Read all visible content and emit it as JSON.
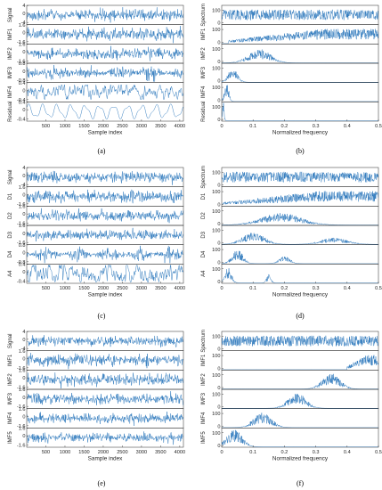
{
  "figure": {
    "series_color": "#1f6fb8",
    "panel_letters": [
      "(a)",
      "(b)",
      "(c)",
      "(d)",
      "(e)",
      "(f)"
    ]
  },
  "chart_data": [
    {
      "type": "line",
      "panel": "(a)",
      "xlabel": "Sample index",
      "xlim": [
        0,
        4096
      ],
      "xticks": [
        "500",
        "1000",
        "1500",
        "2000",
        "2500",
        "3000",
        "3500",
        "4000"
      ],
      "series": [
        {
          "name": "Signal",
          "ytick_labels": [
            "4",
            "0",
            "-4"
          ],
          "ylim": [
            -4,
            4
          ],
          "amplitude": 3,
          "character": "broadband"
        },
        {
          "name": "IMF1",
          "ytick_labels": [
            "1.6",
            "0",
            "-1.6"
          ],
          "ylim": [
            -1.6,
            1.6
          ],
          "amplitude": 1.4,
          "character": "broadband"
        },
        {
          "name": "IMF2",
          "ytick_labels": [
            "1.6",
            "0",
            "-1.6"
          ],
          "ylim": [
            -1.6,
            1.6
          ],
          "amplitude": 1.1,
          "character": "high-mid band"
        },
        {
          "name": "IMF3",
          "ytick_labels": [
            "0.8",
            "0",
            "-0.8"
          ],
          "ylim": [
            -0.8,
            0.8
          ],
          "amplitude": 0.6,
          "character": "mid band"
        },
        {
          "name": "IMF4",
          "ytick_labels": [
            "0.4",
            "0",
            "-0.4"
          ],
          "ylim": [
            -0.4,
            0.4
          ],
          "amplitude": 0.3,
          "character": "low band"
        },
        {
          "name": "Residual",
          "ytick_labels": [
            "0.4",
            "0",
            "-0.4"
          ],
          "ylim": [
            -0.4,
            0.4
          ],
          "amplitude": 0.35,
          "character": "slow oscillation"
        }
      ]
    },
    {
      "type": "line",
      "panel": "(b)",
      "xlabel": "Normalized frequency",
      "xlim": [
        0,
        0.5
      ],
      "xticks": [
        "0",
        "0.1",
        "0.2",
        "0.3",
        "0.4",
        "0.5"
      ],
      "series": [
        {
          "name": "Spectrum",
          "ytick_labels": [
            "100",
            "0"
          ],
          "ylim": [
            0,
            130
          ],
          "spectrum_shape": "flat",
          "level": 100
        },
        {
          "name": "IMF1",
          "ytick_labels": [
            "100",
            "0"
          ],
          "ylim": [
            0,
            130
          ],
          "spectrum_shape": "rising",
          "from": 0.02,
          "to": 0.5,
          "level": 100
        },
        {
          "name": "IMF2",
          "ytick_labels": [
            "100",
            "0"
          ],
          "ylim": [
            0,
            130
          ],
          "spectrum_shape": "hump",
          "center": 0.12,
          "width": 0.05,
          "level": 80
        },
        {
          "name": "IMF3",
          "ytick_labels": [
            "100",
            "0"
          ],
          "ylim": [
            0,
            130
          ],
          "spectrum_shape": "hump",
          "center": 0.035,
          "width": 0.02,
          "level": 90
        },
        {
          "name": "IMF4",
          "ytick_labels": [
            "100",
            "0"
          ],
          "ylim": [
            0,
            130
          ],
          "spectrum_shape": "hump",
          "center": 0.015,
          "width": 0.01,
          "level": 100
        },
        {
          "name": "Residual",
          "ytick_labels": [
            "100",
            "0"
          ],
          "ylim": [
            0,
            130
          ],
          "spectrum_shape": "hump",
          "center": 0.004,
          "width": 0.004,
          "level": 110
        }
      ]
    },
    {
      "type": "line",
      "panel": "(c)",
      "xlabel": "Sample index",
      "xlim": [
        0,
        4096
      ],
      "xticks": [
        "500",
        "1000",
        "1500",
        "2000",
        "2500",
        "3000",
        "3500",
        "4000"
      ],
      "series": [
        {
          "name": "Signal",
          "ytick_labels": [
            "4",
            "0",
            "-4"
          ],
          "ylim": [
            -4,
            4
          ],
          "amplitude": 3,
          "character": "broadband"
        },
        {
          "name": "D1",
          "ytick_labels": [
            "1.6",
            "0",
            "-1.6"
          ],
          "ylim": [
            -1.6,
            1.6
          ],
          "amplitude": 1.3,
          "character": "broadband"
        },
        {
          "name": "D2",
          "ytick_labels": [
            "1.6",
            "0",
            "-1.6"
          ],
          "ylim": [
            -1.6,
            1.6
          ],
          "amplitude": 1.2,
          "character": "broadband"
        },
        {
          "name": "D3",
          "ytick_labels": [
            "1.6",
            "0",
            "-1.6"
          ],
          "ylim": [
            -1.6,
            1.6
          ],
          "amplitude": 1.1,
          "character": "broadband"
        },
        {
          "name": "D4",
          "ytick_labels": [
            "0.8",
            "0",
            "-0.8"
          ],
          "ylim": [
            -0.8,
            0.8
          ],
          "amplitude": 0.6,
          "character": "mid band"
        },
        {
          "name": "A4",
          "ytick_labels": [
            "0.4",
            "0",
            "-0.4"
          ],
          "ylim": [
            -0.4,
            0.4
          ],
          "amplitude": 0.35,
          "character": "low band"
        }
      ]
    },
    {
      "type": "line",
      "panel": "(d)",
      "xlabel": "Normalized frequency",
      "xlim": [
        0,
        0.5
      ],
      "xticks": [
        "0",
        "0.1",
        "0.2",
        "0.3",
        "0.4",
        "0.5"
      ],
      "series": [
        {
          "name": "Spectrum",
          "ytick_labels": [
            "100",
            "0"
          ],
          "ylim": [
            0,
            130
          ],
          "spectrum_shape": "flat",
          "level": 100
        },
        {
          "name": "D1",
          "ytick_labels": [
            "100",
            "0"
          ],
          "ylim": [
            0,
            130
          ],
          "spectrum_shape": "rising",
          "from": 0.0,
          "to": 0.5,
          "level": 100
        },
        {
          "name": "D2",
          "ytick_labels": [
            "100",
            "0"
          ],
          "ylim": [
            0,
            130
          ],
          "spectrum_shape": "hump",
          "center": 0.19,
          "width": 0.09,
          "level": 70
        },
        {
          "name": "D3",
          "ytick_labels": [
            "100",
            "0"
          ],
          "ylim": [
            0,
            130
          ],
          "spectrum_shape": "double-hump",
          "center": 0.1,
          "width": 0.05,
          "center2": 0.36,
          "width2": 0.06,
          "level": 70
        },
        {
          "name": "D4",
          "ytick_labels": [
            "100",
            "0"
          ],
          "ylim": [
            0,
            130
          ],
          "spectrum_shape": "double-hump",
          "center": 0.05,
          "width": 0.025,
          "center2": 0.2,
          "width2": 0.025,
          "level": 80
        },
        {
          "name": "A4",
          "ytick_labels": [
            "100",
            "0"
          ],
          "ylim": [
            0,
            130
          ],
          "spectrum_shape": "double-hump",
          "center": 0.02,
          "width": 0.015,
          "center2": 0.15,
          "width2": 0.01,
          "level": 90
        }
      ]
    },
    {
      "type": "line",
      "panel": "(e)",
      "xlabel": "Sample index",
      "xlim": [
        0,
        4096
      ],
      "xticks": [
        "500",
        "1000",
        "1500",
        "2000",
        "2500",
        "3000",
        "3500",
        "4000"
      ],
      "series": [
        {
          "name": "Signal",
          "ytick_labels": [
            "4",
            "0",
            "-4"
          ],
          "ylim": [
            -4,
            4
          ],
          "amplitude": 3,
          "character": "broadband"
        },
        {
          "name": "IMF1",
          "ytick_labels": [
            "1.6",
            "0",
            "-1.6"
          ],
          "ylim": [
            -1.6,
            1.6
          ],
          "amplitude": 1.3,
          "character": "broadband"
        },
        {
          "name": "IMF2",
          "ytick_labels": [
            "1.6",
            "0",
            "-1.6"
          ],
          "ylim": [
            -1.6,
            1.6
          ],
          "amplitude": 1.3,
          "character": "broadband"
        },
        {
          "name": "IMF3",
          "ytick_labels": [
            "1.6",
            "0",
            "-1.6"
          ],
          "ylim": [
            -1.6,
            1.6
          ],
          "amplitude": 1.2,
          "character": "broadband"
        },
        {
          "name": "IMF4",
          "ytick_labels": [
            "1.6",
            "0",
            "-1.6"
          ],
          "ylim": [
            -1.6,
            1.6
          ],
          "amplitude": 1.1,
          "character": "broadband"
        },
        {
          "name": "IMF5",
          "ytick_labels": [
            "1.6",
            "0",
            "-1.6"
          ],
          "ylim": [
            -1.6,
            1.6
          ],
          "amplitude": 1.0,
          "character": "broadband"
        }
      ]
    },
    {
      "type": "line",
      "panel": "(f)",
      "xlabel": "Normalized frequency",
      "xlim": [
        0,
        0.5
      ],
      "xticks": [
        "0",
        "0.1",
        "0.2",
        "0.3",
        "0.4",
        "0.5"
      ],
      "series": [
        {
          "name": "Spectrum",
          "ytick_labels": [
            "100",
            "0"
          ],
          "ylim": [
            0,
            130
          ],
          "spectrum_shape": "flat",
          "level": 100
        },
        {
          "name": "IMF1",
          "ytick_labels": [
            "100",
            "0"
          ],
          "ylim": [
            0,
            130
          ],
          "spectrum_shape": "rising",
          "from": 0.4,
          "to": 0.5,
          "level": 100
        },
        {
          "name": "IMF2",
          "ytick_labels": [
            "100",
            "0"
          ],
          "ylim": [
            0,
            130
          ],
          "spectrum_shape": "hump",
          "center": 0.35,
          "width": 0.04,
          "level": 90
        },
        {
          "name": "IMF3",
          "ytick_labels": [
            "100",
            "0"
          ],
          "ylim": [
            0,
            130
          ],
          "spectrum_shape": "hump",
          "center": 0.24,
          "width": 0.04,
          "level": 90
        },
        {
          "name": "IMF4",
          "ytick_labels": [
            "100",
            "0"
          ],
          "ylim": [
            0,
            130
          ],
          "spectrum_shape": "hump",
          "center": 0.13,
          "width": 0.04,
          "level": 90
        },
        {
          "name": "IMF5",
          "ytick_labels": [
            "100",
            "0"
          ],
          "ylim": [
            0,
            130
          ],
          "spectrum_shape": "hump",
          "center": 0.04,
          "width": 0.035,
          "level": 100
        }
      ]
    }
  ]
}
